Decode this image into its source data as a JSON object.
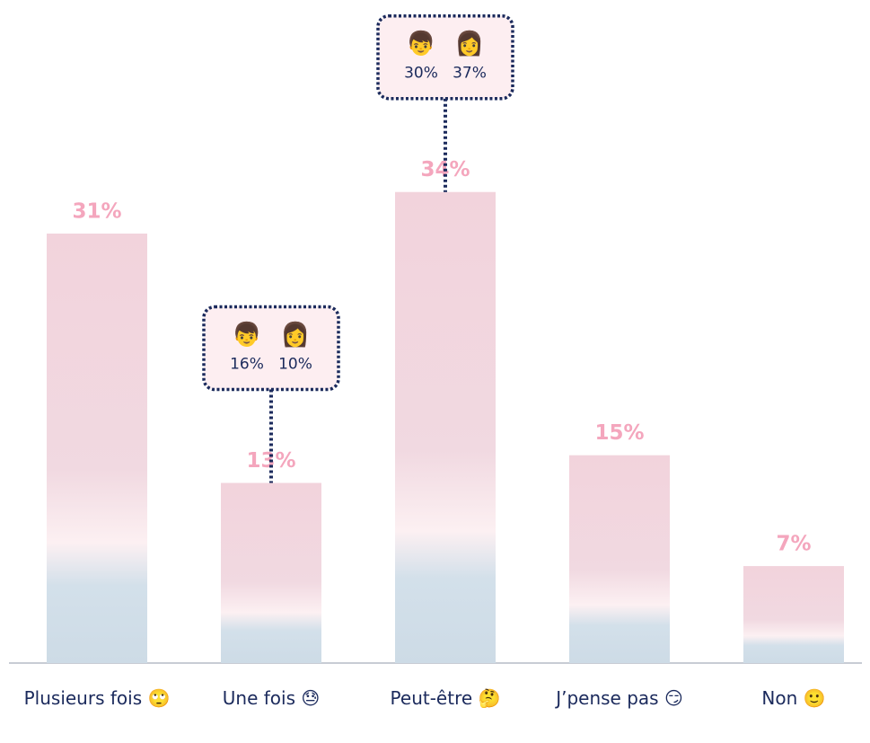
{
  "chart_data": {
    "type": "bar",
    "categories": [
      "Plusieurs fois 🙄",
      "Une fois 😓",
      "Peut-être 🤔",
      "J’pense pas 😏",
      "Non 🙂"
    ],
    "values": [
      31,
      13,
      34,
      15,
      7
    ],
    "value_labels": [
      "31%",
      "13%",
      "34%",
      "15%",
      "7%"
    ],
    "color": "#f4a6bd",
    "series": [
      {
        "name": "👦",
        "color": "#1b2a5c",
        "values": [
          null,
          16,
          30,
          null,
          null
        ],
        "value_labels": [
          null,
          "16%",
          "30%",
          null,
          null
        ]
      },
      {
        "name": "👩",
        "color": "#1b2a5c",
        "values": [
          null,
          10,
          37,
          null,
          null
        ],
        "value_labels": [
          null,
          "10%",
          "37%",
          null,
          null
        ]
      }
    ]
  }
}
